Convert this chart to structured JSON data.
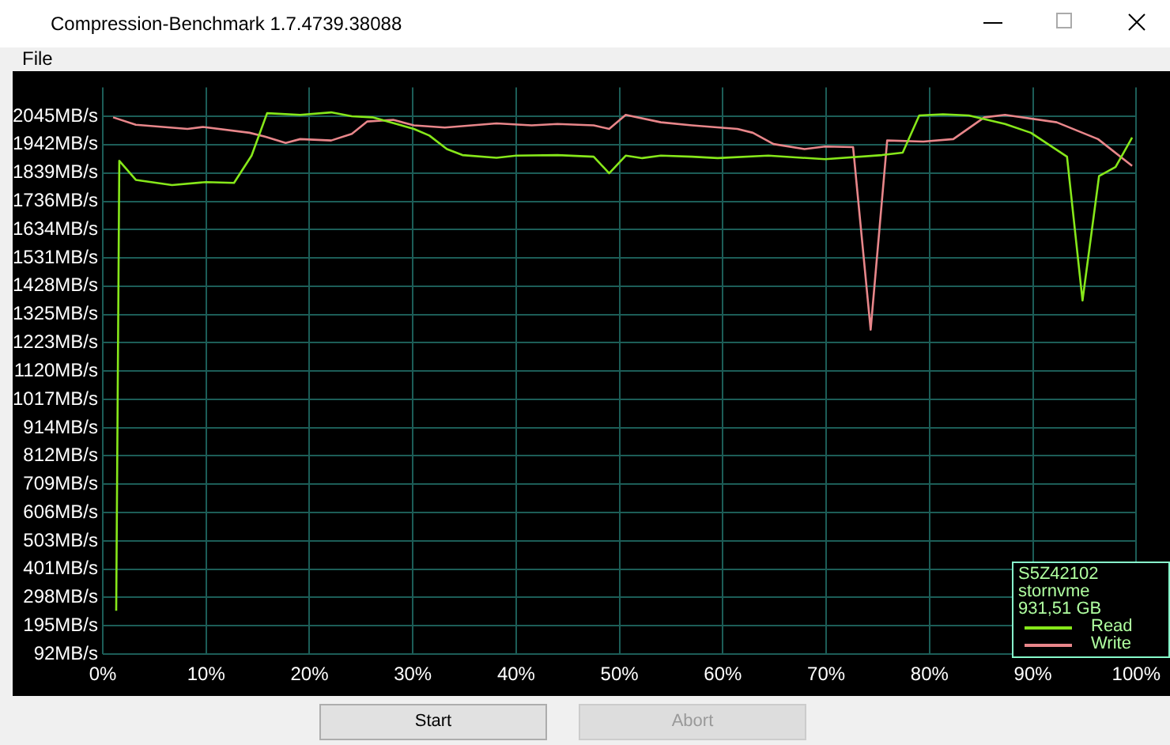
{
  "chart_data": {
    "type": "line",
    "title": "Compression-Benchmark 1.7.4739.38088",
    "annotations": [
      "File",
      "S5Z42102",
      "stornvme",
      "931,51 GB",
      "Start",
      "Abort"
    ],
    "xlim": [
      0,
      100
    ],
    "xticks": [
      {
        "value": 0,
        "label": "0%"
      },
      {
        "value": 10,
        "label": "10%"
      },
      {
        "value": 20,
        "label": "20%"
      },
      {
        "value": 30,
        "label": "30%"
      },
      {
        "value": 40,
        "label": "40%"
      },
      {
        "value": 50,
        "label": "50%"
      },
      {
        "value": 60,
        "label": "60%"
      },
      {
        "value": 70,
        "label": "70%"
      },
      {
        "value": 80,
        "label": "80%"
      },
      {
        "value": 90,
        "label": "90%"
      },
      {
        "value": 100,
        "label": "100%"
      }
    ],
    "ylim": [
      92,
      2150
    ],
    "yticks": [
      {
        "value": 2045,
        "label": "2045MB/s"
      },
      {
        "value": 1942,
        "label": "1942MB/s"
      },
      {
        "value": 1839,
        "label": "1839MB/s"
      },
      {
        "value": 1736,
        "label": "1736MB/s"
      },
      {
        "value": 1634,
        "label": "1634MB/s"
      },
      {
        "value": 1531,
        "label": "1531MB/s"
      },
      {
        "value": 1428,
        "label": "1428MB/s"
      },
      {
        "value": 1325,
        "label": "1325MB/s"
      },
      {
        "value": 1223,
        "label": "1223MB/s"
      },
      {
        "value": 1120,
        "label": "1120MB/s"
      },
      {
        "value": 1017,
        "label": "1017MB/s"
      },
      {
        "value": 914,
        "label": "914MB/s"
      },
      {
        "value": 812,
        "label": "812MB/s"
      },
      {
        "value": 709,
        "label": "709MB/s"
      },
      {
        "value": 606,
        "label": "606MB/s"
      },
      {
        "value": 503,
        "label": "503MB/s"
      },
      {
        "value": 401,
        "label": "401MB/s"
      },
      {
        "value": 298,
        "label": "298MB/s"
      },
      {
        "value": 195,
        "label": "195MB/s"
      },
      {
        "value": 92,
        "label": "92MB/s"
      }
    ],
    "grid": true,
    "legend": "bottom right",
    "marker": "none",
    "series": [
      {
        "name": "Read",
        "color": "#86e71a",
        "x": [
          1.3,
          1.6,
          3.2,
          6.7,
          10,
          12.7,
          14.4,
          15.9,
          19.1,
          22.1,
          24.1,
          26.1,
          30.1,
          31.6,
          33.3,
          34.8,
          38.1,
          40,
          44,
          47.5,
          49,
          50.6,
          52.2,
          54,
          57,
          59.5,
          64.4,
          69.9,
          75.4,
          77.4,
          79,
          81.3,
          83.8,
          87.3,
          89.8,
          93.3,
          94.8,
          96.4,
          98,
          99.6
        ],
        "values": [
          250,
          1883,
          1814,
          1795,
          1806,
          1803,
          1902,
          2056,
          2050,
          2059,
          2045,
          2041,
          1999,
          1975,
          1926,
          1904,
          1894,
          1902,
          1904,
          1898,
          1838,
          1902,
          1893,
          1902,
          1898,
          1893,
          1902,
          1889,
          1904,
          1913,
          2048,
          2052,
          2048,
          2017,
          1985,
          1898,
          1376,
          1828,
          1861,
          1968
        ]
      },
      {
        "name": "Write",
        "color": "#e8868a",
        "x": [
          1,
          3.2,
          8.2,
          9.7,
          14.2,
          15.7,
          17.7,
          19.1,
          22.1,
          24.1,
          25.6,
          28.1,
          30.1,
          33.1,
          38.1,
          41.5,
          44,
          47.5,
          49,
          50.6,
          54,
          57,
          61.4,
          62.9,
          64.9,
          67.9,
          69.9,
          72.6,
          74.3,
          75.9,
          79.4,
          82.3,
          85.3,
          87.3,
          92.3,
          96.3,
          99.6
        ],
        "values": [
          2041,
          2014,
          1999,
          2006,
          1985,
          1971,
          1948,
          1962,
          1957,
          1981,
          2026,
          2032,
          2012,
          2004,
          2019,
          2012,
          2017,
          2012,
          1999,
          2050,
          2023,
          2012,
          1999,
          1985,
          1944,
          1926,
          1935,
          1933,
          1270,
          1957,
          1953,
          1962,
          2041,
          2050,
          2023,
          1962,
          1865
        ]
      }
    ]
  }
}
